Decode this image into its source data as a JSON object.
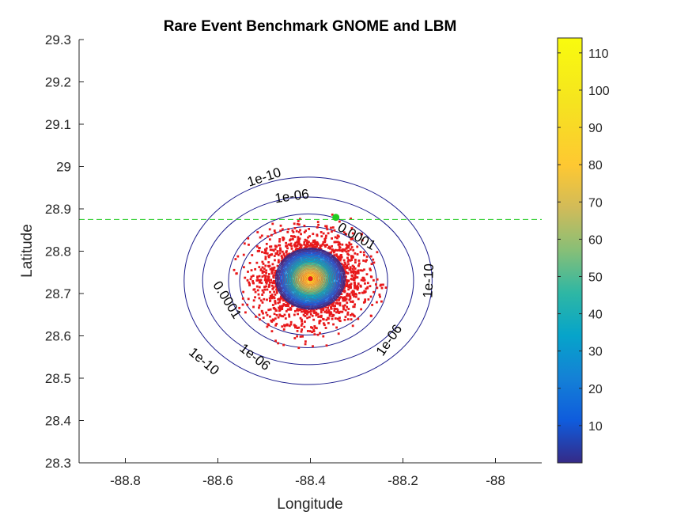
{
  "chart_data": {
    "type": "scatter",
    "title": "Rare Event Benchmark GNOME and LBM",
    "xlabel": "Longitude",
    "ylabel": "Latitude",
    "xlim": [
      -88.9,
      -87.9
    ],
    "ylim": [
      28.3,
      29.3
    ],
    "xticks": [
      -88.8,
      -88.6,
      -88.4,
      -88.2,
      -88
    ],
    "yticks": [
      28.3,
      28.4,
      28.5,
      28.6,
      28.7,
      28.8,
      28.9,
      29,
      29.1,
      29.2,
      29.3
    ],
    "xtick_labels": [
      "-88.8",
      "-88.6",
      "-88.4",
      "-88.2",
      "-88"
    ],
    "ytick_labels": [
      "28.3",
      "28.4",
      "28.5",
      "28.6",
      "28.7",
      "28.8",
      "28.9",
      "29",
      "29.1",
      "29.2",
      "29.3"
    ],
    "grid": false,
    "particle_cloud": {
      "color": "#e8191b",
      "center": [
        -88.4,
        28.735
      ],
      "spread_x": 0.055,
      "spread_y": 0.052
    },
    "density_center": [
      -88.4,
      28.735
    ],
    "probability_contours": [
      {
        "label": "1e-10",
        "rx": 0.268,
        "ry": 0.245,
        "cx": -88.405,
        "cy": 28.73
      },
      {
        "label": "1e-06",
        "rx": 0.228,
        "ry": 0.198,
        "cx": -88.405,
        "cy": 28.73
      },
      {
        "label": "0.0001",
        "rx": 0.172,
        "ry": 0.158,
        "cx": -88.405,
        "cy": 28.73
      },
      {
        "label": "",
        "rx": 0.148,
        "ry": 0.128,
        "cx": -88.405,
        "cy": 28.73
      }
    ],
    "contour_labels": [
      {
        "text": "1e-10",
        "x": -88.5,
        "y": 28.975,
        "angle": -18
      },
      {
        "text": "1e-06",
        "x": -88.44,
        "y": 28.93,
        "angle": -8
      },
      {
        "text": "0.0001",
        "x": -88.3,
        "y": 28.835,
        "angle": 30
      },
      {
        "text": "1e-10",
        "x": -88.145,
        "y": 28.73,
        "angle": -88
      },
      {
        "text": "1e-06",
        "x": -88.23,
        "y": 28.59,
        "angle": -55
      },
      {
        "text": "0.0001",
        "x": -88.58,
        "y": 28.685,
        "angle": 58
      },
      {
        "text": "1e-06",
        "x": -88.52,
        "y": 28.55,
        "angle": 38
      },
      {
        "text": "1e-10",
        "x": -88.63,
        "y": 28.54,
        "angle": 40
      }
    ],
    "threshold_line": {
      "y": 28.875,
      "color": "#22cc22",
      "style": "dashed"
    },
    "marker": {
      "x": -88.345,
      "y": 28.88,
      "color": "#22cc22"
    },
    "colorbar": {
      "min": 0,
      "max": 114,
      "ticks": [
        10,
        20,
        30,
        40,
        50,
        60,
        70,
        80,
        90,
        100,
        110
      ],
      "tick_labels": [
        "10",
        "20",
        "30",
        "40",
        "50",
        "60",
        "70",
        "80",
        "90",
        "100",
        "110"
      ],
      "colormap": "parula"
    }
  }
}
